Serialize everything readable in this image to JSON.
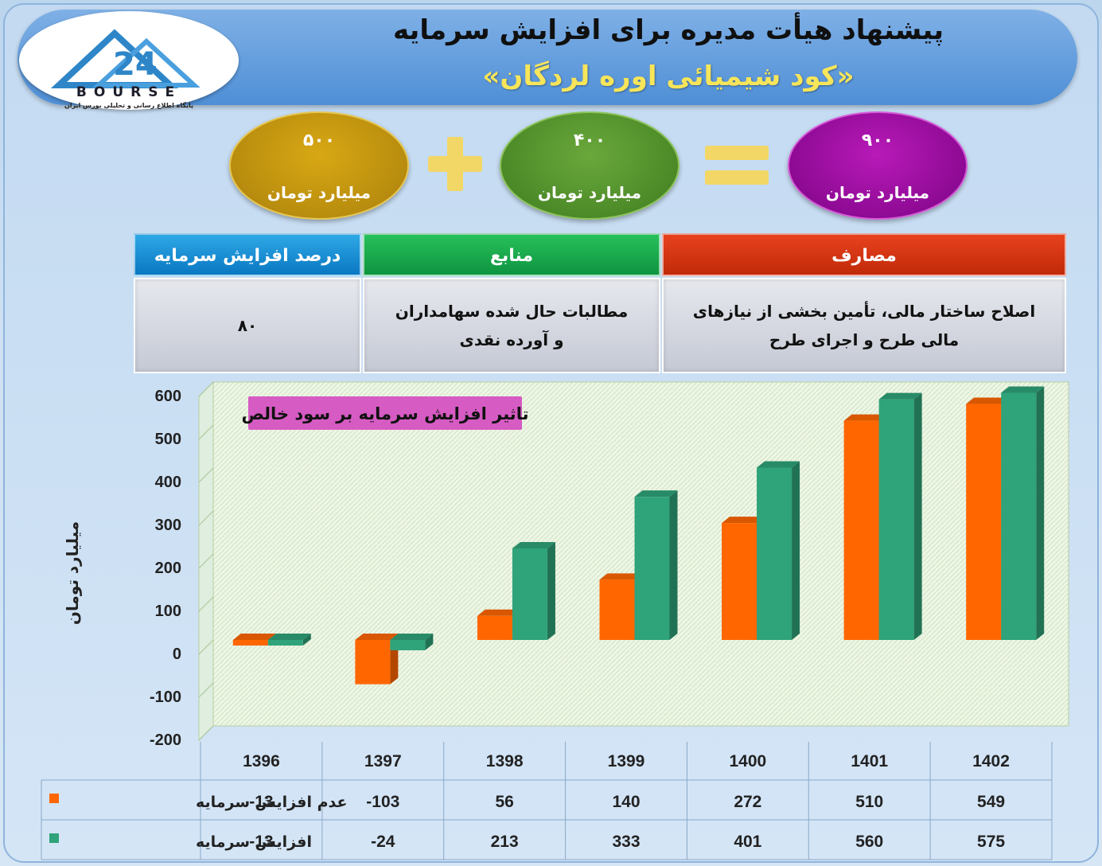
{
  "logo": {
    "word": "BOURSE",
    "tagline": "پایگاه اطلاع رسانی و تحلیلی بورس ایران"
  },
  "title": {
    "line1": "پیشنهاد هیأت مدیره برای افزایش سرمایه",
    "line2": "«کود شیمیائی اوره لردگان»"
  },
  "equation": {
    "left": {
      "value": "۵۰۰",
      "unit": "میلیارد تومان",
      "color": "#c49a10"
    },
    "middle": {
      "value": "۴۰۰",
      "unit": "میلیارد تومان",
      "color": "#5a9a32"
    },
    "total": {
      "value": "۹۰۰",
      "unit": "میلیارد تومان",
      "color": "#9a0ea0"
    }
  },
  "info_table": {
    "headers": {
      "percent": "درصد افزایش سرمایه",
      "sources": "منابع",
      "uses": "مصارف"
    },
    "values": {
      "percent": "۸۰",
      "sources": "مطالبات حال شده سهامداران و آورده نقدی",
      "uses": "اصلاح ساختار مالی، تأمین بخشی از نیازهای مالی طرح و اجرای طرح"
    }
  },
  "chart_data": {
    "type": "bar",
    "title": "تاثیر افزایش سرمایه بر سود خالص",
    "ylabel": "میلیارد تومان",
    "xlabel": "",
    "ylim": [
      -200,
      600
    ],
    "yticks": [
      600,
      500,
      400,
      300,
      200,
      100,
      0,
      -100,
      -200
    ],
    "grid": false,
    "legend": "table-left",
    "categories": [
      "1396",
      "1397",
      "1398",
      "1399",
      "1400",
      "1401",
      "1402"
    ],
    "series": [
      {
        "name": "عدم افزایش سرمایه",
        "values": [
          -13,
          -103,
          56,
          140,
          272,
          510,
          549
        ],
        "color": "#ff6600"
      },
      {
        "name": "افزایش سرمایه",
        "values": [
          -13,
          -24,
          213,
          333,
          401,
          560,
          575
        ],
        "color": "#2fa37a"
      }
    ]
  }
}
